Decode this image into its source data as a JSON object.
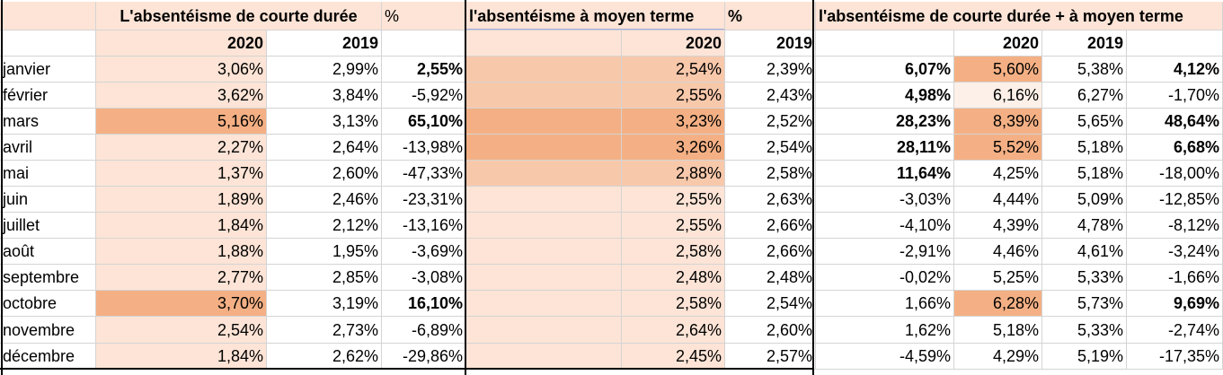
{
  "headers": {
    "group1_title": "L'absentéisme de courte durée",
    "group1_pct": "%",
    "group2_title": "l'absentéisme à moyen terme",
    "group2_pct": "%",
    "group3_title": "l'absentéisme de courte durée + à moyen terme",
    "year_2020": "2020",
    "year_2019": "2019"
  },
  "colors": {
    "light": "#fde4d6",
    "medium": "#f8c8ab",
    "strong": "#f4b084",
    "pale": "#fdf0e8"
  },
  "rows": [
    {
      "month": "janvier",
      "a2020": "3,06%",
      "a2019": "2,99%",
      "apct": "2,55%",
      "b2020": "2,54%",
      "b2019": "2,39%",
      "bpct": "6,07%",
      "c2020": "5,60%",
      "c2019": "5,38%",
      "cpct": "4,12%"
    },
    {
      "month": "février",
      "a2020": "3,62%",
      "a2019": "3,84%",
      "apct": "-5,92%",
      "b2020": "2,55%",
      "b2019": "2,43%",
      "bpct": "4,98%",
      "c2020": "6,16%",
      "c2019": "6,27%",
      "cpct": "-1,70%"
    },
    {
      "month": "mars",
      "a2020": "5,16%",
      "a2019": "3,13%",
      "apct": "65,10%",
      "b2020": "3,23%",
      "b2019": "2,52%",
      "bpct": "28,23%",
      "c2020": "8,39%",
      "c2019": "5,65%",
      "cpct": "48,64%"
    },
    {
      "month": "avril",
      "a2020": "2,27%",
      "a2019": "2,64%",
      "apct": "-13,98%",
      "b2020": "3,26%",
      "b2019": "2,54%",
      "bpct": "28,11%",
      "c2020": "5,52%",
      "c2019": "5,18%",
      "cpct": "6,68%"
    },
    {
      "month": "mai",
      "a2020": "1,37%",
      "a2019": "2,60%",
      "apct": "-47,33%",
      "b2020": "2,88%",
      "b2019": "2,58%",
      "bpct": "11,64%",
      "c2020": "4,25%",
      "c2019": "5,18%",
      "cpct": "-18,00%"
    },
    {
      "month": "juin",
      "a2020": "1,89%",
      "a2019": "2,46%",
      "apct": "-23,31%",
      "b2020": "2,55%",
      "b2019": "2,63%",
      "bpct": "-3,03%",
      "c2020": "4,44%",
      "c2019": "5,09%",
      "cpct": "-12,85%"
    },
    {
      "month": "juillet",
      "a2020": "1,84%",
      "a2019": "2,12%",
      "apct": "-13,16%",
      "b2020": "2,55%",
      "b2019": "2,66%",
      "bpct": "-4,10%",
      "c2020": "4,39%",
      "c2019": "4,78%",
      "cpct": "-8,12%"
    },
    {
      "month": "août",
      "a2020": "1,88%",
      "a2019": "1,95%",
      "apct": "-3,69%",
      "b2020": "2,58%",
      "b2019": "2,66%",
      "bpct": "-2,91%",
      "c2020": "4,46%",
      "c2019": "4,61%",
      "cpct": "-3,24%"
    },
    {
      "month": "septembre",
      "a2020": "2,77%",
      "a2019": "2,85%",
      "apct": "-3,08%",
      "b2020": "2,48%",
      "b2019": "2,48%",
      "bpct": "-0,02%",
      "c2020": "5,25%",
      "c2019": "5,33%",
      "cpct": "-1,66%"
    },
    {
      "month": "octobre",
      "a2020": "3,70%",
      "a2019": "3,19%",
      "apct": "16,10%",
      "b2020": "2,58%",
      "b2019": "2,54%",
      "bpct": "1,66%",
      "c2020": "6,28%",
      "c2019": "5,73%",
      "cpct": "9,69%"
    },
    {
      "month": "novembre",
      "a2020": "2,54%",
      "a2019": "2,73%",
      "apct": "-6,89%",
      "b2020": "2,64%",
      "b2019": "2,60%",
      "bpct": "1,62%",
      "c2020": "5,18%",
      "c2019": "5,33%",
      "cpct": "-2,74%"
    },
    {
      "month": "décembre",
      "a2020": "1,84%",
      "a2019": "2,62%",
      "apct": "-29,86%",
      "b2020": "2,45%",
      "b2019": "2,57%",
      "bpct": "-4,59%",
      "c2020": "4,29%",
      "c2019": "5,19%",
      "cpct": "-17,35%"
    }
  ]
}
